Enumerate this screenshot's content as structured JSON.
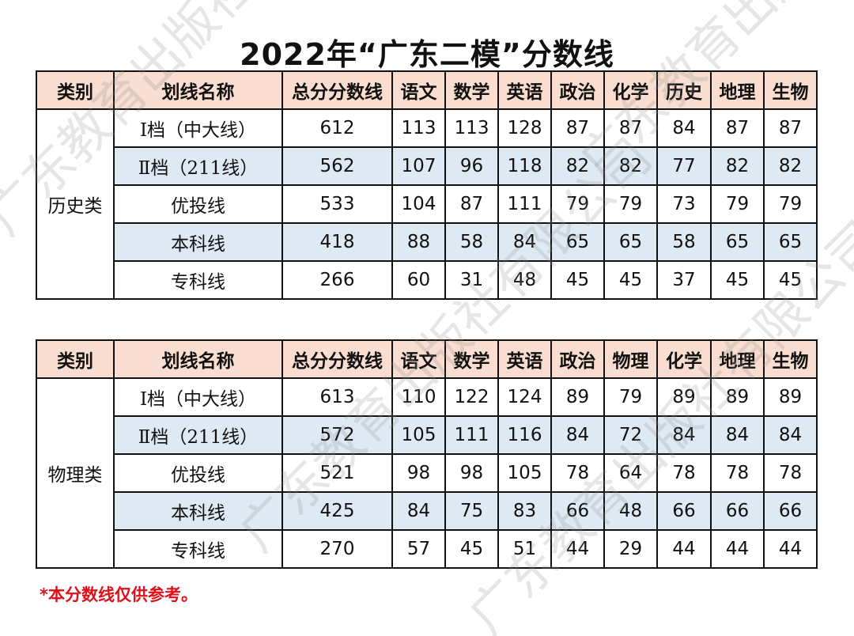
{
  "title": "2022年“广东二模”分数线",
  "watermark": "广东教育出版社有限公司",
  "history_table": {
    "headers": [
      "类别",
      "划线名称",
      "总分分数线",
      "语文",
      "数学",
      "英语",
      "政治",
      "化学",
      "历史",
      "地理",
      "生物"
    ],
    "category": "历史类",
    "rows": [
      {
        "name": "Ⅰ档（中大线）",
        "values": [
          "612",
          "113",
          "113",
          "128",
          "87",
          "87",
          "84",
          "87",
          "87"
        ]
      },
      {
        "name": "Ⅱ档（211线）",
        "values": [
          "562",
          "107",
          "96",
          "118",
          "82",
          "82",
          "77",
          "82",
          "82"
        ]
      },
      {
        "name": "优投线",
        "values": [
          "533",
          "104",
          "87",
          "111",
          "79",
          "79",
          "73",
          "79",
          "79"
        ]
      },
      {
        "name": "本科线",
        "values": [
          "418",
          "88",
          "58",
          "84",
          "65",
          "65",
          "58",
          "65",
          "65"
        ]
      },
      {
        "name": "专科线",
        "values": [
          "266",
          "60",
          "31",
          "48",
          "45",
          "45",
          "37",
          "45",
          "45"
        ]
      }
    ]
  },
  "physics_table": {
    "headers": [
      "类别",
      "划线名称",
      "总分分数线",
      "语文",
      "数学",
      "英语",
      "政治",
      "物理",
      "化学",
      "地理",
      "生物"
    ],
    "category": "物理类",
    "rows": [
      {
        "name": "Ⅰ档（中大线）",
        "values": [
          "613",
          "110",
          "122",
          "124",
          "89",
          "79",
          "89",
          "89",
          "89"
        ]
      },
      {
        "name": "Ⅱ档（211线）",
        "values": [
          "572",
          "105",
          "111",
          "116",
          "84",
          "72",
          "84",
          "84",
          "84"
        ]
      },
      {
        "name": "优投线",
        "values": [
          "521",
          "98",
          "98",
          "105",
          "78",
          "64",
          "78",
          "78",
          "78"
        ]
      },
      {
        "name": "本科线",
        "values": [
          "425",
          "84",
          "75",
          "83",
          "66",
          "48",
          "66",
          "66",
          "66"
        ]
      },
      {
        "name": "专科线",
        "values": [
          "270",
          "57",
          "45",
          "51",
          "44",
          "29",
          "44",
          "44",
          "44"
        ]
      }
    ]
  },
  "footnote": "*本分数线仅供参考。"
}
